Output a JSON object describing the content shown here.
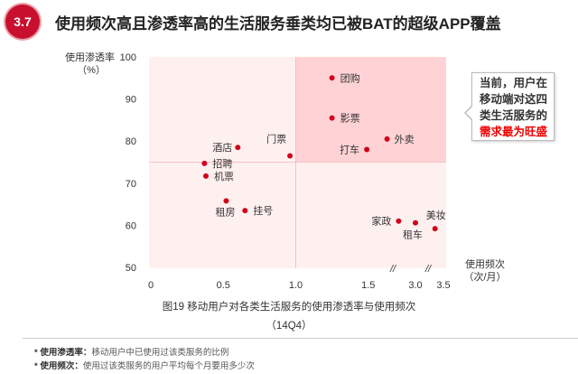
{
  "header": {
    "badge": "3.7",
    "title": "使用频次高且渗透率高的生活服务垂类均已被BAT的超级APP覆盖"
  },
  "callout": {
    "lines": [
      "当前，用户在",
      "移动端对这四",
      "类生活服务的"
    ],
    "highlight": "需求最为旺盛"
  },
  "chart_data": {
    "type": "scatter",
    "title": "图19 移动用户对各类生活服务的使用渗透率与使用频次",
    "subtitle": "（14Q4）",
    "xlabel": "使用频次",
    "xunit": "（次/月）",
    "ylabel": "使用渗透率",
    "yunit": "（%）",
    "xticks": [
      "0",
      "0.5",
      "1.0",
      "1.5",
      "3.0",
      "3.5"
    ],
    "xtick_values": [
      0,
      0.5,
      1.0,
      1.5,
      3.0,
      3.5
    ],
    "yticks": [
      "100",
      "90",
      "80",
      "70",
      "60",
      "50"
    ],
    "ytick_values": [
      100,
      90,
      80,
      70,
      60,
      50
    ],
    "ylim": [
      50,
      100
    ],
    "xlim": [
      0,
      3.5
    ],
    "axis_break": "1.5–3.0 (//)",
    "quadrant_split": {
      "x": 1.0,
      "y": 75
    },
    "point_color": "#d0021b",
    "points": [
      {
        "label": "团购",
        "x": 1.25,
        "y": 95
      },
      {
        "label": "影票",
        "x": 1.25,
        "y": 85.5
      },
      {
        "label": "外卖",
        "x": 1.63,
        "y": 80.5
      },
      {
        "label": "打车",
        "x": 1.49,
        "y": 78
      },
      {
        "label": "门票",
        "x": 0.96,
        "y": 76.5
      },
      {
        "label": "酒店",
        "x": 0.6,
        "y": 78.5
      },
      {
        "label": "招聘",
        "x": 0.37,
        "y": 74.7
      },
      {
        "label": "机票",
        "x": 0.38,
        "y": 71.7
      },
      {
        "label": "租房",
        "x": 0.52,
        "y": 65.8
      },
      {
        "label": "挂号",
        "x": 0.65,
        "y": 63.5
      },
      {
        "label": "家政",
        "x": 2.7,
        "y": 61
      },
      {
        "label": "租车",
        "x": 3.0,
        "y": 60.6
      },
      {
        "label": "美妆",
        "x": 3.35,
        "y": 59.2
      }
    ]
  },
  "notes": [
    {
      "term": "* 使用渗透率：",
      "text": "移动用户中已使用过该类服务的比例"
    },
    {
      "term": "* 使用频次：",
      "text": "使用过该类服务的用户平均每个月要用多少次"
    }
  ]
}
